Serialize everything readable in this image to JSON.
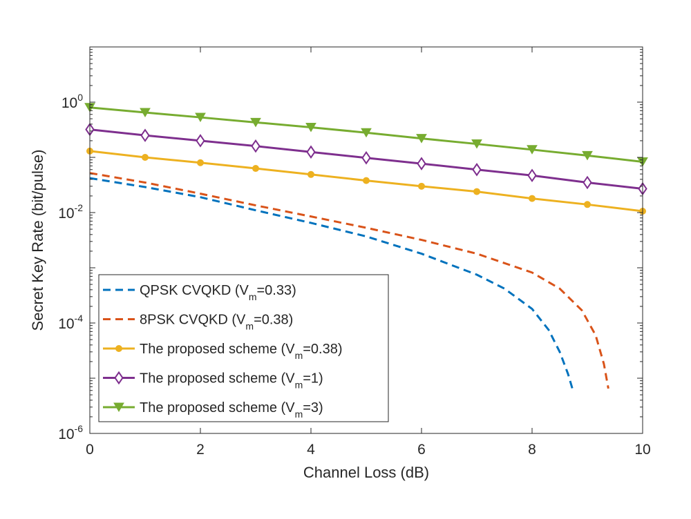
{
  "chart_data": {
    "type": "line",
    "title": "",
    "xlabel": "Channel Loss (dB)",
    "ylabel": "Secret Key Rate (bit/pulse)",
    "xlim": [
      0,
      10
    ],
    "ylim_log10": [
      -6,
      1
    ],
    "yscale": "log",
    "x_ticks": [
      0,
      2,
      4,
      6,
      8,
      10
    ],
    "x_tick_labels": [
      "0",
      "2",
      "4",
      "6",
      "8",
      "10"
    ],
    "y_ticks": [
      {
        "exp": -6,
        "base": "10",
        "power": "-6"
      },
      {
        "exp": -4,
        "base": "10",
        "power": "-4"
      },
      {
        "exp": -2,
        "base": "10",
        "power": "-2"
      },
      {
        "exp": 0,
        "base": "10",
        "power": "0"
      }
    ],
    "legend_position": "bottom-left",
    "series": [
      {
        "name": "QPSK CVQKD (V_m=0.33)",
        "legend_prefix": "QPSK CVQKD (V",
        "legend_sub": "m",
        "legend_suffix": "=0.33)",
        "color": "#0072BD",
        "style": "dashed",
        "marker": "none",
        "x": [
          0,
          1,
          2,
          3,
          4,
          5,
          6,
          7,
          7.5,
          8,
          8.3,
          8.5,
          8.65,
          8.75
        ],
        "y": [
          0.042,
          0.029,
          0.019,
          0.011,
          0.0065,
          0.0037,
          0.0018,
          0.00075,
          0.00042,
          0.00018,
          7.5e-05,
          3e-05,
          1.2e-05,
          5.5e-06
        ]
      },
      {
        "name": "8PSK CVQKD (V_m=0.38)",
        "legend_prefix": "8PSK CVQKD (V",
        "legend_sub": "m",
        "legend_suffix": "=0.38)",
        "color": "#D95319",
        "style": "dashed",
        "marker": "none",
        "x": [
          0,
          1,
          2,
          3,
          4,
          5,
          6,
          7,
          8,
          8.5,
          8.9,
          9.15,
          9.3,
          9.38
        ],
        "y": [
          0.052,
          0.035,
          0.022,
          0.0135,
          0.0085,
          0.0053,
          0.0032,
          0.0018,
          0.00082,
          0.00042,
          0.00017,
          6e-05,
          1.8e-05,
          6.5e-06
        ]
      },
      {
        "name": "The proposed scheme (V_m=0.38)",
        "legend_prefix": "The proposed scheme (V",
        "legend_sub": "m",
        "legend_suffix": "=0.38)",
        "color": "#EDB120",
        "style": "solid",
        "marker": "circle",
        "x": [
          0,
          1,
          2,
          3,
          4,
          5,
          6,
          7,
          8,
          9,
          10
        ],
        "y": [
          0.13,
          0.1,
          0.08,
          0.063,
          0.049,
          0.038,
          0.03,
          0.024,
          0.018,
          0.014,
          0.0106
        ]
      },
      {
        "name": "The proposed scheme (V_m=1)",
        "legend_prefix": "The proposed scheme (V",
        "legend_sub": "m",
        "legend_suffix": "=1)",
        "color": "#7E2F8E",
        "style": "solid",
        "marker": "diamond",
        "x": [
          0,
          1,
          2,
          3,
          4,
          5,
          6,
          7,
          8,
          9,
          10
        ],
        "y": [
          0.32,
          0.25,
          0.2,
          0.16,
          0.125,
          0.098,
          0.077,
          0.06,
          0.047,
          0.035,
          0.027
        ]
      },
      {
        "name": "The proposed scheme (V_m=3)",
        "legend_prefix": "The proposed scheme (V",
        "legend_sub": "m",
        "legend_suffix": "=3)",
        "color": "#77AC30",
        "style": "solid",
        "marker": "triangle-down",
        "x": [
          0,
          1,
          2,
          3,
          4,
          5,
          6,
          7,
          8,
          9,
          10
        ],
        "y": [
          0.8,
          0.65,
          0.53,
          0.43,
          0.35,
          0.28,
          0.22,
          0.175,
          0.138,
          0.108,
          0.083
        ]
      }
    ]
  }
}
